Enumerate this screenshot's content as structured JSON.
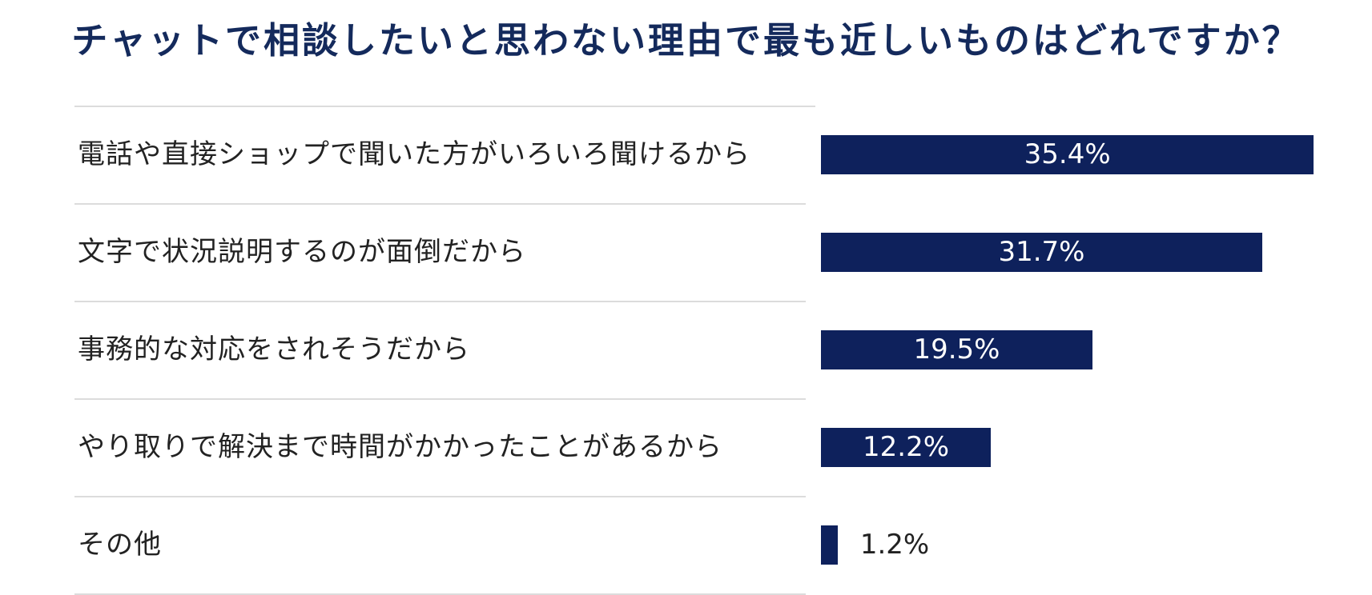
{
  "chart_data": {
    "type": "bar",
    "orientation": "horizontal",
    "title": "チャットで相談したいと思わない理由で最も近しいものはどれですか？",
    "categories": [
      "電話や直接ショップで聞いた方がいろいろ聞けるから",
      "文字で状況説明するのが面倒だから",
      "事務的な対応をされそうだから",
      "やり取りで解決まで時間がかかったことがあるから",
      "その他"
    ],
    "values": [
      35.4,
      31.7,
      19.5,
      12.2,
      1.2
    ],
    "value_labels": [
      "35.4%",
      "31.7%",
      "19.5%",
      "12.2%",
      "1.2%"
    ],
    "unit": "%",
    "bar_color": "#0e215c",
    "title_color": "#142a5c",
    "grid": false,
    "legend": "none"
  }
}
